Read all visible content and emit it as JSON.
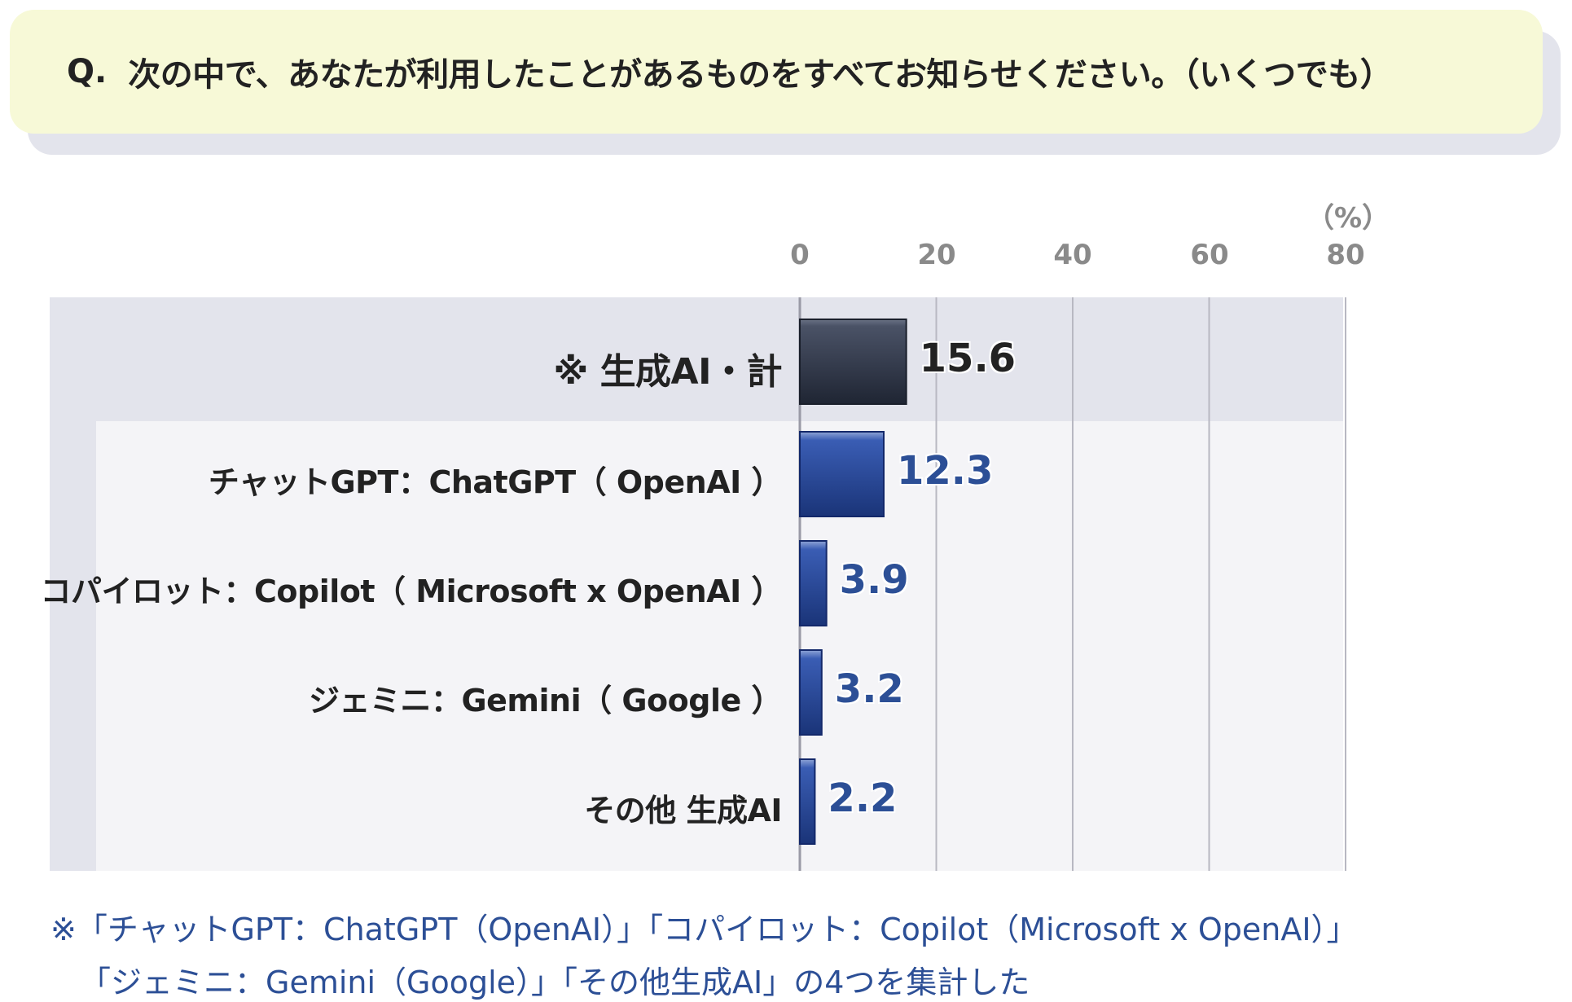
{
  "question": {
    "label": "Q.",
    "text": "次の中で、あなたが利用したことがあるものをすべてお知らせください。（いくつでも）"
  },
  "chart_data": {
    "type": "bar",
    "orientation": "horizontal",
    "unit": "（%）",
    "xlim": [
      0,
      80
    ],
    "ticks": [
      "0",
      "20",
      "40",
      "60",
      "80"
    ],
    "grid": true,
    "categories": [
      "※ 生成AI・計",
      "チャットGPT：ChatGPT（ OpenAI ）",
      "コパイロット：Copilot（ Microsoft x OpenAI ）",
      "ジェミニ：Gemini（ Google ）",
      "その他 生成AI"
    ],
    "values": [
      15.6,
      12.3,
      3.9,
      3.2,
      2.2
    ],
    "value_labels": [
      "15.6",
      "12.3",
      "3.9",
      "3.2",
      "2.2"
    ],
    "colors": {
      "total_bar": "#3d4557",
      "bar": "#2c4a9a",
      "value_text": "#2c4f96",
      "gridline": "#b8b8c2"
    }
  },
  "footnote": {
    "line1": "※「チャットGPT：ChatGPT（OpenAI）」「コパイロット：Copilot（Microsoft x OpenAI）」",
    "line2": "「ジェミニ：Gemini（Google）」「その他生成AI」の4つを集計した"
  }
}
